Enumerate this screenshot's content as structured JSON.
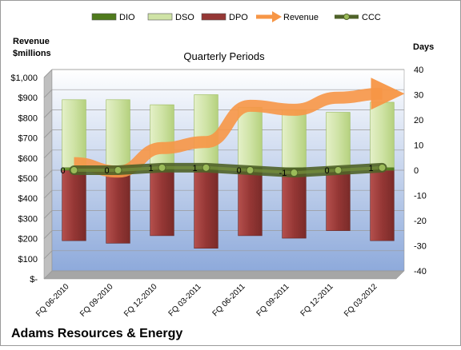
{
  "colors": {
    "dio": "#4f7a1c",
    "dso": "#cfe3a6",
    "dpo": "#953735",
    "revenue": "#f79646",
    "ccc": "#4f6228",
    "ccc_marker": "#9bbb59",
    "plot_top": "#ffffff",
    "plot_bottom": "#8eaadb",
    "plot_side": "#bfbfbf"
  },
  "chart_data": {
    "type": "bar",
    "title": "Quarterly Periods",
    "footer": "Adams Resources & Energy",
    "left_axis": {
      "label_line1": "Revenue",
      "label_line2": "$millions",
      "min": 0,
      "max": 1000,
      "ticks": [
        "$-",
        "$100",
        "$200",
        "$300",
        "$400",
        "$500",
        "$600",
        "$700",
        "$800",
        "$900",
        "$1,000"
      ]
    },
    "right_axis": {
      "label": "Days",
      "min": -40,
      "max": 40,
      "ticks": [
        "-40",
        "-30",
        "-20",
        "-10",
        "0",
        "10",
        "20",
        "30",
        "40"
      ]
    },
    "categories": [
      "FQ 06-2010",
      "FQ 09-2010",
      "FQ 12-2010",
      "FQ 03-2011",
      "FQ 06-2011",
      "FQ 09-2011",
      "FQ 12-2011",
      "FQ 03-2012"
    ],
    "legend": [
      {
        "key": "dio",
        "name": "DIO",
        "symbol": "bar"
      },
      {
        "key": "dso",
        "name": "DSO",
        "symbol": "bar"
      },
      {
        "key": "dpo",
        "name": "DPO",
        "symbol": "bar"
      },
      {
        "key": "revenue",
        "name": "Revenue",
        "symbol": "arrow"
      },
      {
        "key": "ccc",
        "name": "CCC",
        "symbol": "line-marker"
      }
    ],
    "series": [
      {
        "name": "DIO",
        "axis": "right",
        "values": [
          1,
          1,
          1,
          1,
          1,
          1,
          1,
          1
        ]
      },
      {
        "name": "DSO",
        "axis": "right",
        "values": [
          28,
          28,
          26,
          30,
          25,
          24,
          23,
          27
        ]
      },
      {
        "name": "DPO",
        "axis": "right",
        "values": [
          -28,
          -29,
          -26,
          -31,
          -26,
          -27,
          -24,
          -28
        ]
      },
      {
        "name": "Revenue",
        "axis": "left",
        "values": [
          535,
          493,
          610,
          640,
          820,
          800,
          860,
          880
        ]
      },
      {
        "name": "CCC",
        "axis": "right",
        "values": [
          0,
          0,
          1,
          1,
          0,
          -1,
          0,
          1
        ],
        "data_labels": [
          "0",
          "0",
          "1",
          "1",
          "0",
          "-1",
          "0",
          "1"
        ]
      }
    ]
  }
}
